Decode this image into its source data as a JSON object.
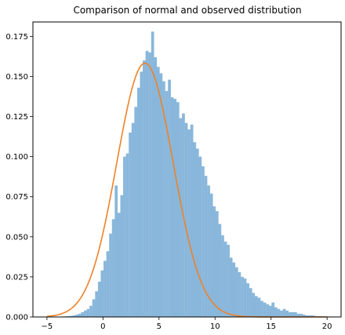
{
  "chart_data": {
    "type": "bar",
    "title": "Comparison of normal and observed distribution",
    "xlabel": "",
    "ylabel": "",
    "xlim": [
      -6.25,
      21.25
    ],
    "ylim": [
      0,
      0.184
    ],
    "grid": false,
    "legend": "none",
    "x_ticks": [
      -5,
      0,
      5,
      10,
      15,
      20
    ],
    "y_ticks": [
      0.0,
      0.025,
      0.05,
      0.075,
      0.1,
      0.125,
      0.15,
      0.175
    ],
    "x_tick_labels": [
      "−5",
      "0",
      "5",
      "10",
      "15",
      "20"
    ],
    "y_tick_labels": [
      "0.000",
      "0.025",
      "0.050",
      "0.075",
      "0.100",
      "0.125",
      "0.150",
      "0.175"
    ],
    "histogram": {
      "bin_start": -4.2,
      "bin_width": 0.25,
      "color": "#89b7db",
      "heights": [
        0.0002,
        0.0002,
        0.0003,
        0.0004,
        0.0005,
        0.0007,
        0.001,
        0.0015,
        0.002,
        0.003,
        0.004,
        0.005,
        0.007,
        0.011,
        0.016,
        0.022,
        0.029,
        0.035,
        0.041,
        0.052,
        0.061,
        0.082,
        0.065,
        0.076,
        0.1,
        0.102,
        0.115,
        0.121,
        0.131,
        0.143,
        0.153,
        0.16,
        0.166,
        0.165,
        0.178,
        0.162,
        0.156,
        0.152,
        0.147,
        0.141,
        0.148,
        0.137,
        0.136,
        0.134,
        0.124,
        0.127,
        0.121,
        0.117,
        0.12,
        0.109,
        0.105,
        0.1,
        0.094,
        0.088,
        0.082,
        0.077,
        0.069,
        0.066,
        0.058,
        0.051,
        0.047,
        0.045,
        0.037,
        0.034,
        0.031,
        0.028,
        0.025,
        0.024,
        0.021,
        0.018,
        0.015,
        0.013,
        0.012,
        0.01,
        0.009,
        0.008,
        0.007,
        0.009,
        0.006,
        0.005,
        0.004,
        0.005,
        0.004,
        0.003,
        0.003,
        0.003,
        0.002,
        0.002,
        0.0015,
        0.001,
        0.001,
        0.001,
        0.0007,
        0.0005,
        0.0005,
        0.0004,
        0.0003,
        0.0003,
        0.0002,
        0.0002
      ]
    },
    "normal_curve": {
      "mean": 3.75,
      "std": 2.52,
      "x_range": [
        -5,
        20
      ],
      "color": "#ef8128"
    }
  }
}
